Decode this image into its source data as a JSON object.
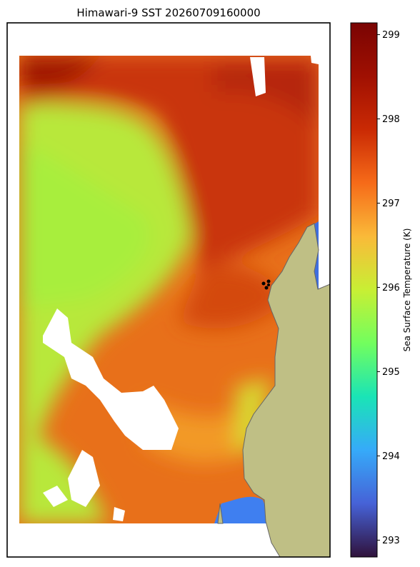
{
  "title": "Himawari-9 SST 20260709160000",
  "colorbar": {
    "label": "Sea Surface Temperature (K)",
    "lim": [
      292.8,
      299.14
    ],
    "ticks": [
      293,
      294,
      295,
      296,
      297,
      298,
      299
    ]
  }
}
